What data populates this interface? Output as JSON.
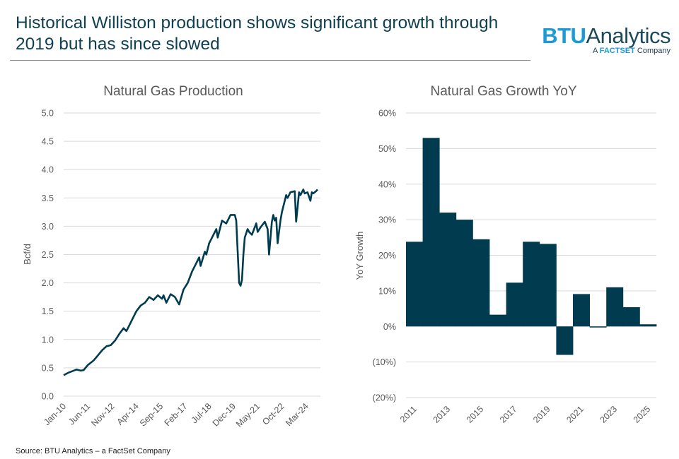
{
  "header": {
    "title": "Historical Williston production shows significant growth through 2019 but has since slowed"
  },
  "logo": {
    "brand_bold": "BTU",
    "brand_rest": "Analytics",
    "sub_prefix": "A ",
    "sub_bold": "FACTSET",
    "sub_suffix": " Company"
  },
  "footer": {
    "source": "Source: BTU Analytics – a FactSet Company"
  },
  "colors": {
    "series": "#003b4f",
    "grid": "#d9d9d9",
    "text": "#595959",
    "title": "#0e3f52",
    "brand_blue": "#1a9bd6"
  },
  "chart_data": [
    {
      "type": "line",
      "title": "Natural Gas Production",
      "xlabel": "",
      "ylabel": "Bcf/d",
      "ylim": [
        0,
        5
      ],
      "ytick_labels": [
        "0.0",
        "0.5",
        "1.0",
        "1.5",
        "2.0",
        "2.5",
        "3.0",
        "3.5",
        "4.0",
        "4.5",
        "5.0"
      ],
      "xtick_labels": [
        "Jan-10",
        "Jun-11",
        "Nov-12",
        "Apr-14",
        "Sep-15",
        "Feb-17",
        "Jul-18",
        "Dec-19",
        "May-21",
        "Oct-22",
        "Mar-24"
      ],
      "grid": true,
      "series": [
        {
          "name": "Natural Gas Production",
          "x_months": [
            0,
            3,
            6,
            9,
            12,
            14,
            17,
            21,
            24,
            27,
            30,
            33,
            36,
            39,
            42,
            44,
            45,
            48,
            51,
            54,
            57,
            60,
            63,
            66,
            69,
            70,
            72,
            75,
            78,
            81,
            84,
            87,
            90,
            93,
            95,
            96,
            99,
            100,
            102,
            105,
            107,
            108,
            111,
            114,
            117,
            120,
            121,
            123,
            124,
            125,
            126,
            127,
            129,
            130,
            132,
            135,
            136,
            138,
            141,
            143,
            144,
            146,
            147,
            148,
            149,
            150,
            152,
            153,
            154,
            155,
            156,
            157,
            159,
            162,
            163,
            165,
            166,
            168,
            169,
            171,
            173,
            174,
            175,
            177,
            178
          ],
          "values": [
            0.37,
            0.41,
            0.44,
            0.47,
            0.45,
            0.46,
            0.55,
            0.63,
            0.72,
            0.81,
            0.88,
            0.9,
            0.98,
            1.1,
            1.2,
            1.15,
            1.2,
            1.35,
            1.5,
            1.6,
            1.65,
            1.75,
            1.7,
            1.78,
            1.72,
            1.78,
            1.65,
            1.8,
            1.75,
            1.62,
            1.88,
            2.0,
            2.2,
            2.35,
            2.45,
            2.3,
            2.55,
            2.5,
            2.7,
            2.85,
            2.95,
            2.8,
            3.1,
            3.05,
            3.2,
            3.2,
            3.1,
            2.0,
            1.95,
            2.05,
            2.5,
            2.8,
            2.95,
            2.9,
            2.85,
            3.05,
            2.9,
            2.98,
            3.08,
            2.95,
            2.5,
            3.08,
            3.2,
            3.1,
            3.15,
            2.7,
            3.1,
            3.25,
            3.35,
            3.45,
            3.55,
            3.5,
            3.6,
            3.62,
            3.08,
            3.6,
            3.55,
            3.65,
            3.58,
            3.6,
            3.45,
            3.6,
            3.58,
            3.62,
            3.65
          ]
        }
      ]
    },
    {
      "type": "bar",
      "title": "Natural Gas Growth YoY",
      "xlabel": "",
      "ylabel": "YoY Growth",
      "ylim": [
        -20,
        60
      ],
      "ytick_labels": [
        "(20%)",
        "(10%)",
        "0%",
        "10%",
        "20%",
        "30%",
        "40%",
        "50%",
        "60%"
      ],
      "categories": [
        "2011",
        "2012",
        "2013",
        "2014",
        "2015",
        "2016",
        "2017",
        "2018",
        "2019",
        "2020",
        "2021",
        "2022",
        "2023",
        "2024",
        "2025"
      ],
      "xtick_labels": [
        "2011",
        "2013",
        "2015",
        "2017",
        "2019",
        "2021",
        "2023",
        "2025"
      ],
      "grid": true,
      "series": [
        {
          "name": "YoY Growth (%)",
          "values": [
            23.8,
            53.0,
            32.0,
            30.0,
            24.5,
            3.3,
            12.3,
            23.8,
            23.2,
            -8.0,
            9.1,
            -0.3,
            11.0,
            5.4,
            0.6
          ]
        }
      ]
    }
  ]
}
